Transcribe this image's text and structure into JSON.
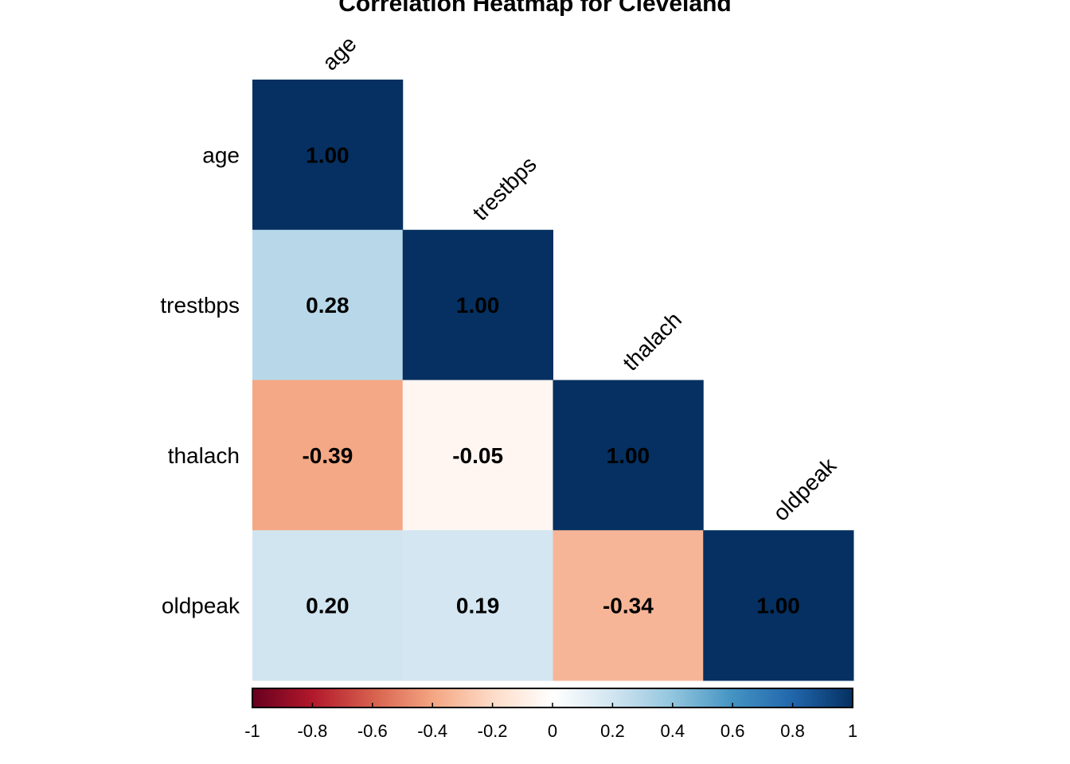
{
  "chart_data": {
    "type": "heatmap",
    "title": "Correlation Heatmap for Cleveland",
    "variables": [
      "age",
      "trestbps",
      "thalach",
      "oldpeak"
    ],
    "matrix": [
      [
        1.0,
        null,
        null,
        null
      ],
      [
        0.28,
        1.0,
        null,
        null
      ],
      [
        -0.39,
        -0.05,
        1.0,
        null
      ],
      [
        0.2,
        0.19,
        -0.34,
        1.0
      ]
    ],
    "cell_labels": [
      [
        "1.00",
        "",
        "",
        ""
      ],
      [
        "0.28",
        "1.00",
        "",
        ""
      ],
      [
        "-0.39",
        "-0.05",
        "1.00",
        ""
      ],
      [
        "0.20",
        "0.19",
        "-0.34",
        "1.00"
      ]
    ],
    "layout": "lower-triangle",
    "colorbar": {
      "range": [
        -1,
        1
      ],
      "ticks": [
        -1,
        -0.8,
        -0.6,
        -0.4,
        -0.2,
        0,
        0.2,
        0.4,
        0.6,
        0.8,
        1
      ],
      "tick_labels": [
        "-1",
        "-0.8",
        "-0.6",
        "-0.4",
        "-0.2",
        "0",
        "0.2",
        "0.4",
        "0.6",
        "0.8",
        "1"
      ],
      "placement": "bottom",
      "colors": [
        "#67001f",
        "#b2182b",
        "#d6604d",
        "#f4a582",
        "#fddbc7",
        "#ffffff",
        "#d1e5f0",
        "#92c5de",
        "#4393c3",
        "#2166ac",
        "#053061"
      ]
    },
    "grid": false
  }
}
